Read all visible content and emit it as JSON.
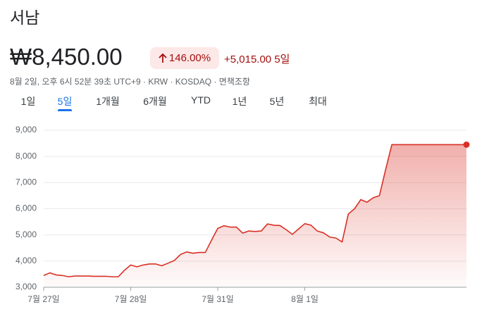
{
  "header": {
    "title": "서남",
    "price": "₩8,450.00",
    "change_pct": "146.00%",
    "change": "+5,015.00",
    "period": "5일",
    "meta": "8월 2일, 오후 6시 52분 39초 UTC+9 · KRW · KOSDAQ · 면책조항"
  },
  "tabs": [
    "1일",
    "5일",
    "1개월",
    "6개월",
    "YTD",
    "1년",
    "5년",
    "최대"
  ],
  "selected_tab": 1,
  "chart_data": {
    "type": "line",
    "color": "#d93025",
    "grid": true,
    "categories": [
      "7월 27일",
      null,
      null,
      null,
      null,
      null,
      null,
      null,
      null,
      null,
      null,
      null,
      null,
      null,
      "7월 28일",
      null,
      null,
      null,
      null,
      null,
      null,
      null,
      null,
      null,
      null,
      null,
      null,
      null,
      "7월 31일",
      null,
      null,
      null,
      null,
      null,
      null,
      null,
      null,
      null,
      null,
      null,
      null,
      null,
      "8월 1일",
      null,
      null,
      null,
      null,
      null,
      null,
      null,
      null,
      null,
      null,
      null,
      null,
      null,
      null,
      null,
      null,
      null,
      null,
      null,
      null,
      null,
      null,
      null,
      null,
      null,
      null
    ],
    "values": [
      3450,
      3550,
      3470,
      3450,
      3400,
      3430,
      3430,
      3430,
      3420,
      3420,
      3420,
      3400,
      3400,
      3650,
      3850,
      3780,
      3850,
      3890,
      3890,
      3820,
      3920,
      4020,
      4250,
      4350,
      4300,
      4330,
      4330,
      4800,
      5250,
      5350,
      5300,
      5300,
      5070,
      5150,
      5130,
      5150,
      5420,
      5370,
      5360,
      5200,
      5020,
      5230,
      5430,
      5370,
      5150,
      5080,
      4920,
      4880,
      4730,
      5800,
      6000,
      6350,
      6250,
      6420,
      6500,
      7500,
      8450,
      8450,
      8450,
      8450,
      8450,
      8450,
      8450,
      8450,
      8450,
      8450,
      8450,
      8450,
      8450
    ],
    "ylim": [
      3000,
      9000
    ],
    "yticks": [
      {
        "value": 3000,
        "label": "3,000"
      },
      {
        "value": 4000,
        "label": "4,000"
      },
      {
        "value": 5000,
        "label": "5,000"
      },
      {
        "value": 6000,
        "label": "6,000"
      },
      {
        "value": 7000,
        "label": "7,000"
      },
      {
        "value": 8000,
        "label": "8,000"
      },
      {
        "value": 9000,
        "label": "9,000"
      }
    ]
  }
}
